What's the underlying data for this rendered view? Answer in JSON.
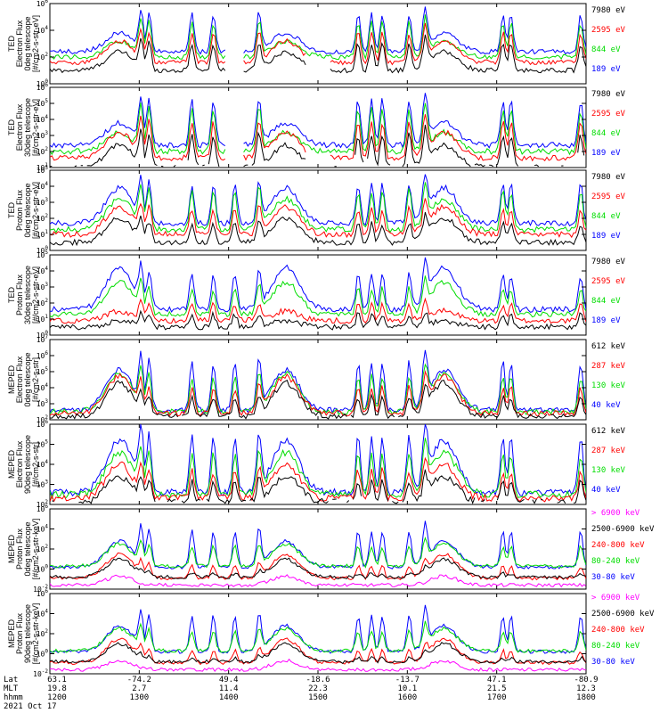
{
  "chart_data": {
    "type": "line",
    "panels": [
      {
        "ylabel": [
          "TED",
          "Electron Flux",
          "0deg telescope",
          "[#/cm2-s-str-eV]"
        ],
        "ytick_labels": [
          "10^6",
          "10^4",
          "10^2",
          "10^0"
        ],
        "ylim_log10": [
          0,
          6
        ],
        "profile": "electron_ted",
        "series": [
          {
            "name": "7980 eV",
            "color": "#000000"
          },
          {
            "name": "2595 eV",
            "color": "#ff0000"
          },
          {
            "name": "844 eV",
            "color": "#00dd00"
          },
          {
            "name": "189 eV",
            "color": "#0000ff"
          }
        ]
      },
      {
        "ylabel": [
          "TED",
          "Electron Flux",
          "30deg telescope",
          "[#/cm2-s-str-eV]"
        ],
        "ytick_labels": [
          "10^6",
          "10^5",
          "10^4",
          "10^3",
          "10^2",
          "10^1"
        ],
        "ylim_log10": [
          1,
          6
        ],
        "profile": "electron_ted",
        "series": [
          {
            "name": "7980 eV",
            "color": "#000000"
          },
          {
            "name": "2595 eV",
            "color": "#ff0000"
          },
          {
            "name": "844 eV",
            "color": "#00dd00"
          },
          {
            "name": "189 eV",
            "color": "#0000ff"
          }
        ]
      },
      {
        "ylabel": [
          "TED",
          "Proton Flux",
          "0deg telescope",
          "[#/cm2-s-str-eV]"
        ],
        "ytick_labels": [
          "10^5",
          "10^4",
          "10^3",
          "10^2",
          "10^1",
          "10^0"
        ],
        "ylim_log10": [
          0,
          5
        ],
        "profile": "proton_ted",
        "series": [
          {
            "name": "7980 eV",
            "color": "#000000"
          },
          {
            "name": "2595 eV",
            "color": "#ff0000"
          },
          {
            "name": "844 eV",
            "color": "#00dd00"
          },
          {
            "name": "189 eV",
            "color": "#0000ff"
          }
        ]
      },
      {
        "ylabel": [
          "TED",
          "Proton Flux",
          "30deg telescope",
          "[#/cm2-s-str-eV]"
        ],
        "ytick_labels": [
          "10^5",
          "10^4",
          "10^3",
          "10^2",
          "10^1",
          "10^0"
        ],
        "ylim_log10": [
          0,
          5
        ],
        "profile": "proton_ted30",
        "series": [
          {
            "name": "7980 eV",
            "color": "#000000"
          },
          {
            "name": "2595 eV",
            "color": "#ff0000"
          },
          {
            "name": "844 eV",
            "color": "#00dd00"
          },
          {
            "name": "189 eV",
            "color": "#0000ff"
          }
        ]
      },
      {
        "ylabel": [
          "MEPED",
          "Electron Flux",
          "0deg telescope",
          "[#/cm2-s-str]"
        ],
        "ytick_labels": [
          "10^7",
          "10^6",
          "10^5",
          "10^4",
          "10^3",
          "10^2"
        ],
        "ylim_log10": [
          2,
          7
        ],
        "profile": "electron_meped",
        "series": [
          {
            "name": "612 keV",
            "color": "#000000"
          },
          {
            "name": "287 keV",
            "color": "#ff0000"
          },
          {
            "name": "130 keV",
            "color": "#00dd00"
          },
          {
            "name": "40 keV",
            "color": "#0000ff"
          }
        ]
      },
      {
        "ylabel": [
          "MEPED",
          "Electron Flux",
          "90deg telescope",
          "[#/cm2-s-str]"
        ],
        "ytick_labels": [
          "10^6",
          "10^5",
          "10^4",
          "10^3",
          "10^2"
        ],
        "ylim_log10": [
          2,
          6
        ],
        "profile": "electron_meped90",
        "series": [
          {
            "name": "612 keV",
            "color": "#000000"
          },
          {
            "name": "287 keV",
            "color": "#ff0000"
          },
          {
            "name": "130 keV",
            "color": "#00dd00"
          },
          {
            "name": "40 keV",
            "color": "#0000ff"
          }
        ]
      },
      {
        "ylabel": [
          "MEPED",
          "Proton Flux",
          "0deg telescope",
          "[#/cm2-s-str-keV]"
        ],
        "ytick_labels": [
          "10^6",
          "10^4",
          "10^2",
          "10^0",
          "10^-2"
        ],
        "ylim_log10": [
          -2,
          6
        ],
        "profile": "proton_meped",
        "series": [
          {
            "name": "> 6900 keV",
            "color": "#ff00ff"
          },
          {
            "name": "2500-6900 keV",
            "color": "#000000"
          },
          {
            "name": "240-800 keV",
            "color": "#ff0000"
          },
          {
            "name": "80-240 keV",
            "color": "#00dd00"
          },
          {
            "name": "30-80 keV",
            "color": "#0000ff"
          }
        ]
      },
      {
        "ylabel": [
          "MEPED",
          "Proton Flux",
          "90deg telescope",
          "[#/cm2-s-str-keV]"
        ],
        "ytick_labels": [
          "10^6",
          "10^4",
          "10^2",
          "10^0",
          "10^-2"
        ],
        "ylim_log10": [
          -2,
          6
        ],
        "profile": "proton_meped",
        "series": [
          {
            "name": "> 6900 keV",
            "color": "#ff00ff"
          },
          {
            "name": "2500-6900 keV",
            "color": "#000000"
          },
          {
            "name": "240-800 keV",
            "color": "#ff0000"
          },
          {
            "name": "80-240 keV",
            "color": "#00dd00"
          },
          {
            "name": "30-80 keV",
            "color": "#0000ff"
          }
        ]
      }
    ],
    "x_axis": {
      "row_labels": [
        "Lat",
        "MLT",
        "hhmm",
        "2021 Oct 17"
      ],
      "columns": [
        {
          "lat": "63.1",
          "mlt": "19.8",
          "hhmm": "1200"
        },
        {
          "lat": "-74.2",
          "mlt": "2.7",
          "hhmm": "1300"
        },
        {
          "lat": "49.4",
          "mlt": "11.4",
          "hhmm": "1400"
        },
        {
          "lat": "-18.6",
          "mlt": "22.3",
          "hhmm": "1500"
        },
        {
          "lat": "-13.7",
          "mlt": "10.1",
          "hhmm": "1600"
        },
        {
          "lat": "47.1",
          "mlt": "21.5",
          "hhmm": "1700"
        },
        {
          "lat": "-80.9",
          "mlt": "12.3",
          "hhmm": "1800"
        }
      ],
      "time_range_hours": [
        12,
        18
      ]
    }
  }
}
